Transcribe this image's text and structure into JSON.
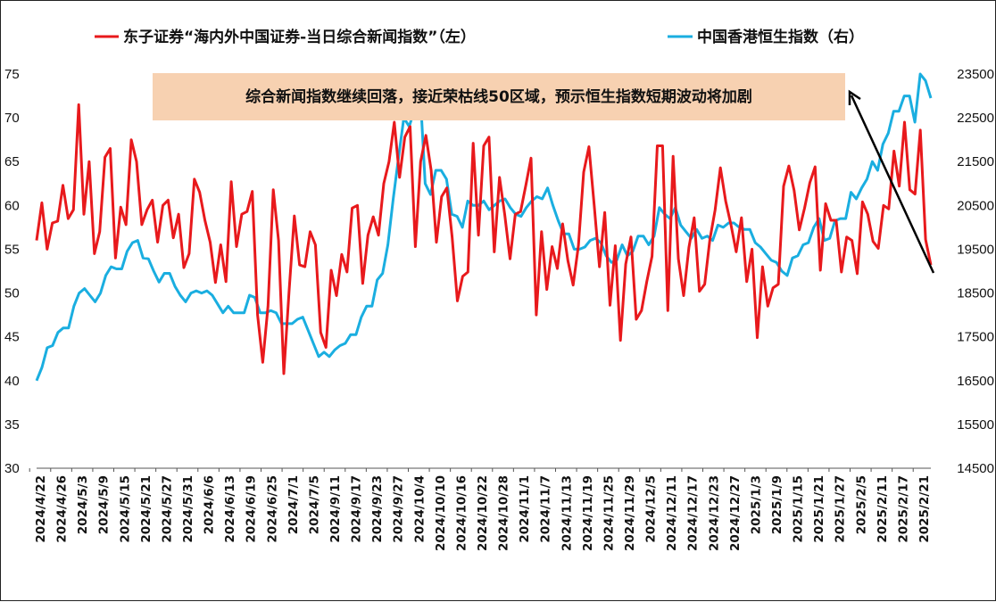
{
  "chart_data": {
    "type": "line",
    "title": "",
    "legend": {
      "placement": "top",
      "entries": [
        {
          "name": "东子证券“海内外中国证券-当日综合新闻指数”（左）",
          "color": "#e8191c"
        },
        {
          "name": "中国香港恒生指数（右）",
          "color": "#1aaee0"
        }
      ]
    },
    "annotation": "综合新闻指数继续回落，接近荣枯线50区域，预示恒生指数短期波动将加剧",
    "annotation_style": {
      "fill": "#f7d1b1",
      "arrow_color": "#000000"
    },
    "y_left": {
      "range": [
        30,
        75
      ],
      "ticks": [
        30,
        35,
        40,
        45,
        50,
        55,
        60,
        65,
        70,
        75
      ]
    },
    "y_right": {
      "range": [
        14500,
        23500
      ],
      "ticks": [
        14500,
        15500,
        16500,
        17500,
        18500,
        19500,
        20500,
        21500,
        22500,
        23500
      ]
    },
    "x_tick_labels": [
      "2024/4/22",
      "2024/4/26",
      "2024/5/3",
      "2024/5/9",
      "2024/5/15",
      "2024/5/21",
      "2024/5/27",
      "2024/5/31",
      "2024/6/6",
      "2024/6/13",
      "2024/6/19",
      "2024/6/25",
      "2024/7/1",
      "2024/7/5",
      "2024/9/11",
      "2024/9/17",
      "2024/9/23",
      "2024/9/27",
      "2024/10/4",
      "2024/10/10",
      "2024/10/16",
      "2024/10/22",
      "2024/10/28",
      "2024/11/1",
      "2024/11/7",
      "2024/11/13",
      "2024/11/19",
      "2024/11/25",
      "2024/11/29",
      "2024/12/5",
      "2024/12/11",
      "2024/12/17",
      "2024/12/23",
      "2024/12/27",
      "2025/1/3",
      "2025/1/9",
      "2025/1/15",
      "2025/1/21",
      "2025/1/27",
      "2025/2/5",
      "2025/2/11",
      "2025/2/17",
      "2025/2/21"
    ],
    "series": [
      {
        "name": "东子证券“海内外中国证券-当日综合新闻指数”（左）",
        "axis": "left",
        "color": "#e8191c",
        "values": [
          56,
          60.3,
          55,
          58,
          58.2,
          62.3,
          58.5,
          59.5,
          71.5,
          59,
          65,
          54.5,
          57,
          65.5,
          66.5,
          54,
          59.8,
          57.8,
          67.5,
          65,
          57.8,
          59.5,
          60.6,
          55.8,
          60,
          60.6,
          56.3,
          59,
          52.9,
          54.5,
          63,
          61.5,
          58.3,
          55.8,
          51.2,
          55.5,
          51.3,
          62.7,
          55.3,
          59,
          59.3,
          61.6,
          47.5,
          42.1,
          48.5,
          61.8,
          56,
          40.8,
          50.2,
          58.8,
          53.2,
          53,
          57,
          55.5,
          45.5,
          43.8,
          52.6,
          49.7,
          54.4,
          52.4,
          59.7,
          60,
          51.1,
          56.6,
          58.7,
          56.6,
          62.5,
          65,
          69.5,
          63.2,
          67.8,
          69,
          55.3,
          65,
          68,
          64,
          55.8,
          61,
          62,
          56.4,
          49.1,
          51.9,
          52.4,
          67.1,
          56.6,
          66.8,
          67.8,
          54.7,
          63.2,
          58.9,
          53.9,
          59,
          59.3,
          62.3,
          65.4,
          47.5,
          57,
          50.4,
          55.3,
          52.8,
          57.9,
          53.7,
          50.9,
          55.4,
          63.8,
          66.7,
          60,
          53,
          59.2,
          48.6,
          55.4,
          44.6,
          53.3,
          56.4,
          47,
          48,
          51.3,
          54.2,
          66.8,
          66.8,
          48,
          65.6,
          53.9,
          49.7,
          55.2,
          58.6,
          50.2,
          51,
          56.1,
          59.5,
          64.3,
          60.5,
          57.8,
          54.7,
          58.6,
          51.3,
          55,
          44.9,
          53,
          48.5,
          50.6,
          51,
          62.2,
          64.5,
          61.7,
          57.2,
          59.7,
          62.6,
          64.4,
          52.6,
          60.2,
          58.3,
          58.3,
          52.4,
          56.4,
          56,
          52.2,
          60.4,
          59,
          55.9,
          55.1,
          60,
          59.6,
          66.2,
          62.2,
          69.5,
          61.8,
          61.3,
          68.6,
          56.1,
          53.2
        ]
      },
      {
        "name": "中国香港恒生指数（右）",
        "axis": "right",
        "color": "#1aaee0",
        "values": [
          16500,
          16800,
          17250,
          17300,
          17600,
          17700,
          17700,
          18200,
          18500,
          18600,
          18450,
          18300,
          18500,
          18900,
          19100,
          19050,
          19050,
          19450,
          19650,
          19700,
          19300,
          19280,
          19000,
          18750,
          18950,
          18950,
          18650,
          18450,
          18300,
          18500,
          18550,
          18500,
          18550,
          18450,
          18250,
          18050,
          18200,
          18050,
          18050,
          18050,
          18450,
          18400,
          18050,
          18050,
          18100,
          18050,
          17800,
          17800,
          17800,
          17900,
          17950,
          17650,
          17350,
          17050,
          17150,
          17050,
          17200,
          17300,
          17350,
          17550,
          17550,
          17950,
          18200,
          18200,
          18800,
          18950,
          19600,
          20650,
          21600,
          22500,
          22300,
          22700,
          23250,
          21000,
          20750,
          21300,
          21300,
          21100,
          20300,
          20250,
          20000,
          20600,
          20500,
          20500,
          20600,
          20400,
          20500,
          20600,
          20650,
          20450,
          20300,
          20250,
          20450,
          20600,
          20700,
          20650,
          20900,
          20500,
          20150,
          19850,
          19850,
          19500,
          19500,
          19550,
          19700,
          19750,
          19650,
          19350,
          19200,
          19250,
          19600,
          19350,
          19450,
          19800,
          19800,
          19600,
          19800,
          20450,
          20300,
          20200,
          20450,
          20050,
          19900,
          19750,
          19950,
          19750,
          19800,
          19700,
          20050,
          20000,
          20100,
          20100,
          20000,
          19950,
          19950,
          19650,
          19550,
          19400,
          19250,
          19200,
          19000,
          18900,
          19300,
          19350,
          19600,
          19650,
          20000,
          20200,
          19700,
          19750,
          20150,
          20200,
          20200,
          20800,
          20650,
          20900,
          21100,
          21500,
          21300,
          21900,
          22150,
          22650,
          22650,
          23000,
          23000,
          22400,
          23500,
          23350,
          22950
        ]
      }
    ]
  }
}
